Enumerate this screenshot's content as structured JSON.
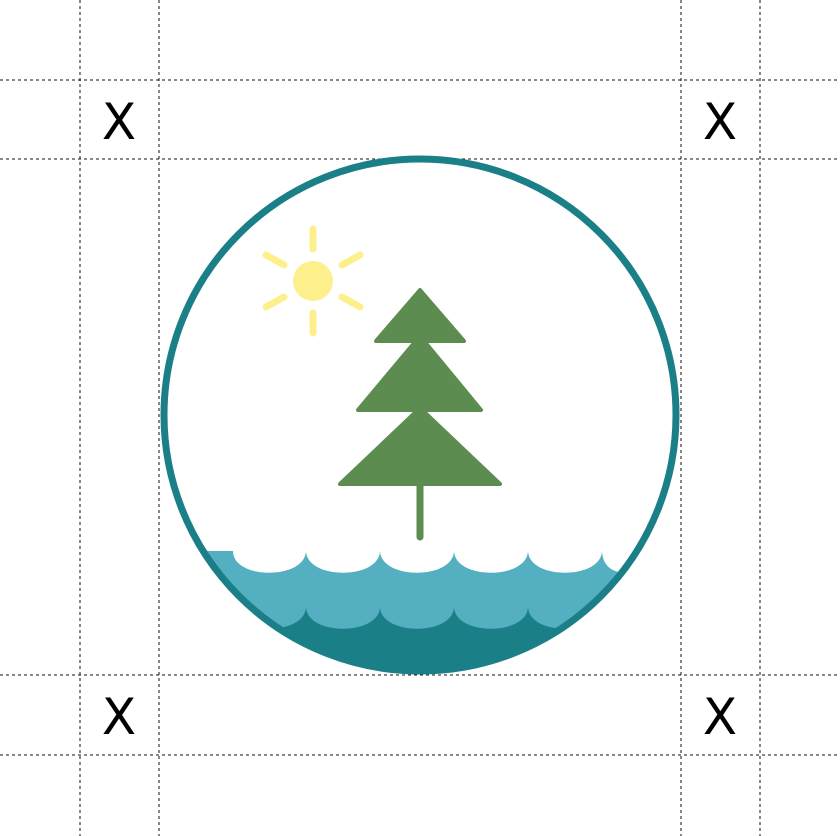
{
  "marks": {
    "top_left": "X",
    "top_right": "X",
    "bottom_left": "X",
    "bottom_right": "X"
  },
  "colors": {
    "ring": "#1b7f87",
    "sun": "#fdf08c",
    "tree": "#5c8c50",
    "wave_light": "#54b0c0",
    "wave_dark": "#1b7f87",
    "guides": "#111111"
  },
  "icons": {
    "logo": "tree-sun-water-emblem"
  }
}
